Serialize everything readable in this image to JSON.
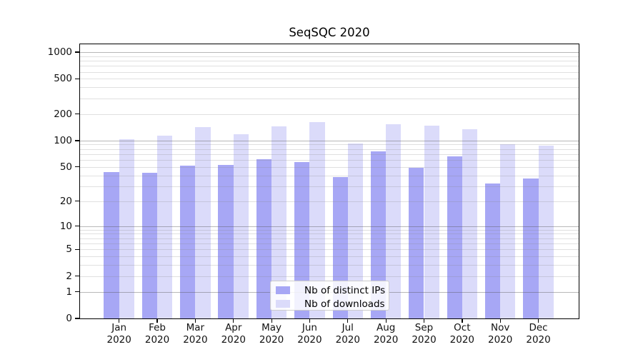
{
  "chart_data": {
    "type": "bar",
    "title": "SeqSQC 2020",
    "categories": [
      "Jan 2020",
      "Feb 2020",
      "Mar 2020",
      "Apr 2020",
      "May 2020",
      "Jun 2020",
      "Jul 2020",
      "Aug 2020",
      "Sep 2020",
      "Oct 2020",
      "Nov 2020",
      "Dec 2020"
    ],
    "series": [
      {
        "name": "Nb of distinct IPs",
        "color": "#a7a7f5",
        "values": [
          44,
          43,
          52,
          53,
          61,
          57,
          38,
          75,
          49,
          66,
          32,
          37
        ]
      },
      {
        "name": "Nb of downloads",
        "color": "#dbdbfa",
        "values": [
          103,
          114,
          143,
          117,
          146,
          162,
          93,
          153,
          149,
          134,
          91,
          87
        ]
      }
    ],
    "y_axis": {
      "scale": "log1p",
      "ticks": [
        0,
        1,
        2,
        5,
        10,
        20,
        50,
        100,
        200,
        500,
        1000
      ],
      "major_gridlines": [
        1,
        10,
        100,
        1000
      ],
      "minor_gridline_decades": [
        1,
        10,
        100
      ],
      "range": [
        0,
        1000
      ]
    },
    "x_axis": {
      "label_line2": "2020"
    },
    "grid": true,
    "legend": {
      "position": "lower center"
    }
  }
}
